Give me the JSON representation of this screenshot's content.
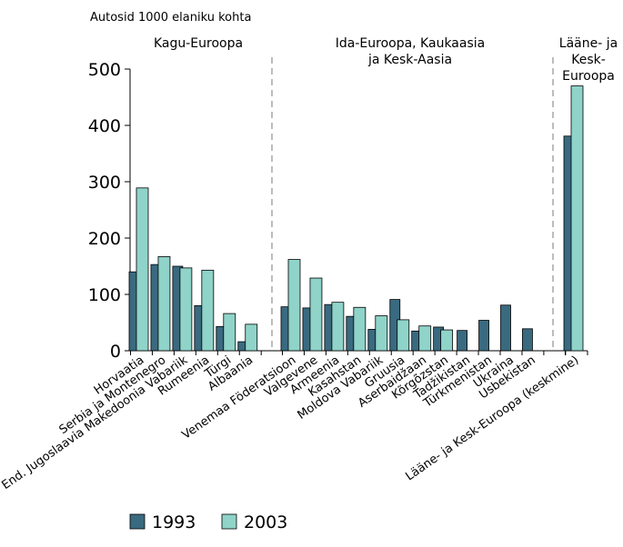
{
  "chart_data": {
    "type": "bar",
    "title": "Autosid 1000 elaniku kohta",
    "ylim": [
      0,
      500
    ],
    "yticks": [
      0,
      100,
      200,
      300,
      400,
      500
    ],
    "grid": false,
    "legend_position": "bottom-left",
    "groups": [
      "Kagu-Euroopa",
      "Ida-Euroopa, Kaukaasia\nja Kesk-Aasia",
      "Lääne- ja\nKesk-\nEuroopa"
    ],
    "categories": [
      "Horvaatia",
      "Serbia ja Montenegro",
      "End. Jugoslaavia Makedoonia Vabariik",
      "Rumeenia",
      "Türgi",
      "Albaania",
      "Venemaa Föderatsioon",
      "Valgevene",
      "Armeenia",
      "Kasahstan",
      "Moldova Vabariik",
      "Gruusia",
      "Aserbaidžaan",
      "Kõrgõzstan",
      "Tadžikistan",
      "Türkmenistan",
      "Ukraina",
      "Usbekistan",
      "Lääne- ja Kesk-Euroopa (keskmine)"
    ],
    "category_group": [
      0,
      0,
      0,
      0,
      0,
      0,
      1,
      1,
      1,
      1,
      1,
      1,
      1,
      1,
      1,
      1,
      1,
      1,
      2
    ],
    "series": [
      {
        "name": "1993",
        "color": "#3a6a80",
        "values": [
          140,
          153,
          150,
          80,
          43,
          16,
          78,
          76,
          82,
          61,
          38,
          91,
          35,
          42,
          36,
          54,
          81,
          39,
          381
        ]
      },
      {
        "name": "2003",
        "color": "#8fd3c9",
        "values": [
          289,
          167,
          147,
          143,
          66,
          47,
          162,
          129,
          86,
          77,
          62,
          55,
          44,
          37,
          null,
          null,
          null,
          null,
          470
        ]
      }
    ]
  }
}
